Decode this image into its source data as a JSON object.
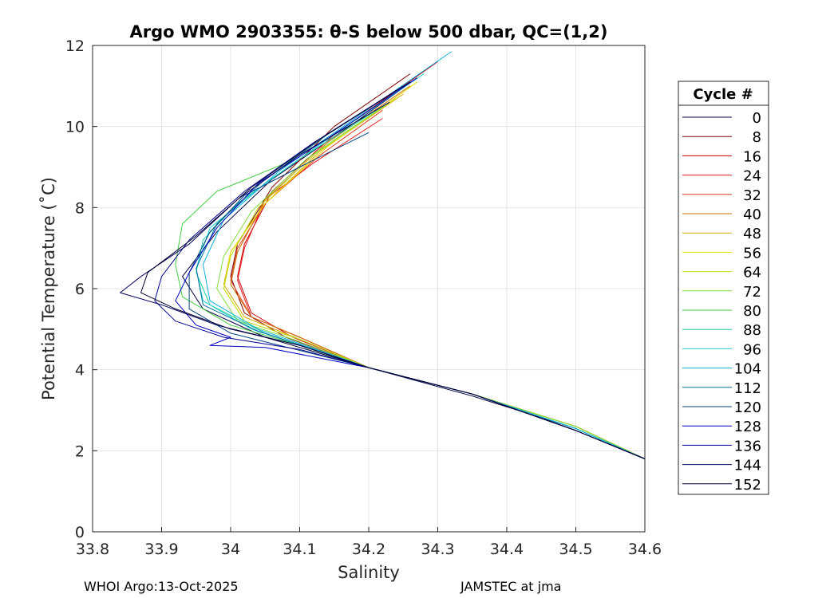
{
  "chart_data": {
    "type": "line",
    "title": "Argo WMO 2903355: θ-S below 500 dbar,  QC=(1,2)",
    "xlabel": "Salinity",
    "ylabel": "Potential Temperature (˚C)",
    "xlim": [
      33.8,
      34.6
    ],
    "ylim": [
      0,
      12
    ],
    "xticks": [
      "33.8",
      "33.9",
      "34",
      "34.1",
      "34.2",
      "34.3",
      "34.4",
      "34.5",
      "34.6"
    ],
    "yticks": [
      "0",
      "2",
      "4",
      "6",
      "8",
      "10",
      "12"
    ],
    "grid": true,
    "legend": {
      "title": "Cycle #",
      "position": "right outside",
      "entries": [
        {
          "label": "0",
          "color": "#000040"
        },
        {
          "label": "8",
          "color": "#800000"
        },
        {
          "label": "16",
          "color": "#cc0000"
        },
        {
          "label": "24",
          "color": "#e81a1a"
        },
        {
          "label": "32",
          "color": "#e04020"
        },
        {
          "label": "40",
          "color": "#cc7000"
        },
        {
          "label": "48",
          "color": "#d4a800"
        },
        {
          "label": "56",
          "color": "#e8e000"
        },
        {
          "label": "64",
          "color": "#c0e020"
        },
        {
          "label": "72",
          "color": "#80e040"
        },
        {
          "label": "80",
          "color": "#40d040"
        },
        {
          "label": "88",
          "color": "#20d0a0"
        },
        {
          "label": "96",
          "color": "#20d0d0"
        },
        {
          "label": "104",
          "color": "#10b0e0"
        },
        {
          "label": "112",
          "color": "#0070a0"
        },
        {
          "label": "120",
          "color": "#004080"
        },
        {
          "label": "128",
          "color": "#0000c0"
        },
        {
          "label": "136",
          "color": "#000090"
        },
        {
          "label": "144",
          "color": "#000060"
        },
        {
          "label": "152",
          "color": "#000030"
        }
      ]
    },
    "series": [
      {
        "name": "0",
        "color": "#000040",
        "points": [
          [
            34.27,
            11.2
          ],
          [
            34.18,
            10.1
          ],
          [
            34.06,
            8.7
          ],
          [
            33.98,
            7.4
          ],
          [
            33.93,
            6.3
          ],
          [
            33.96,
            5.5
          ],
          [
            34.05,
            4.8
          ],
          [
            34.2,
            4.05
          ],
          [
            34.35,
            3.35
          ],
          [
            34.5,
            2.55
          ],
          [
            34.6,
            1.8
          ]
        ]
      },
      {
        "name": "8",
        "color": "#800000",
        "points": [
          [
            34.26,
            11.3
          ],
          [
            34.15,
            10.0
          ],
          [
            34.06,
            8.5
          ],
          [
            34.01,
            7.1
          ],
          [
            34.0,
            6.3
          ],
          [
            34.02,
            5.4
          ],
          [
            34.08,
            4.8
          ],
          [
            34.2,
            4.05
          ],
          [
            34.35,
            3.4
          ],
          [
            34.5,
            2.6
          ],
          [
            34.6,
            1.8
          ]
        ]
      },
      {
        "name": "16",
        "color": "#cc0000",
        "points": [
          [
            34.3,
            11.6
          ],
          [
            34.15,
            9.8
          ],
          [
            34.06,
            8.4
          ],
          [
            34.02,
            7.1
          ],
          [
            34.01,
            6.3
          ],
          [
            34.03,
            5.4
          ],
          [
            34.09,
            4.8
          ],
          [
            34.2,
            4.05
          ],
          [
            34.35,
            3.4
          ],
          [
            34.5,
            2.6
          ],
          [
            34.6,
            1.8
          ]
        ]
      },
      {
        "name": "24",
        "color": "#e81a1a",
        "points": [
          [
            34.22,
            10.2
          ],
          [
            34.12,
            9.1
          ],
          [
            34.05,
            8.2
          ],
          [
            34.02,
            7.0
          ],
          [
            34.01,
            6.2
          ],
          [
            34.03,
            5.3
          ],
          [
            34.1,
            4.8
          ],
          [
            34.2,
            4.05
          ],
          [
            34.35,
            3.4
          ],
          [
            34.5,
            2.6
          ],
          [
            34.6,
            1.8
          ]
        ]
      },
      {
        "name": "32",
        "color": "#e04020",
        "points": [
          [
            34.22,
            10.4
          ],
          [
            34.13,
            9.3
          ],
          [
            34.05,
            8.1
          ],
          [
            34.01,
            7.0
          ],
          [
            34.0,
            6.2
          ],
          [
            34.03,
            5.3
          ],
          [
            34.1,
            4.8
          ],
          [
            34.2,
            4.05
          ],
          [
            34.35,
            3.4
          ],
          [
            34.5,
            2.6
          ],
          [
            34.6,
            1.8
          ]
        ]
      },
      {
        "name": "40",
        "color": "#cc7000",
        "points": [
          [
            34.26,
            11.0
          ],
          [
            34.14,
            9.6
          ],
          [
            34.05,
            8.2
          ],
          [
            34.01,
            6.9
          ],
          [
            34.0,
            6.1
          ],
          [
            34.03,
            5.3
          ],
          [
            34.1,
            4.8
          ],
          [
            34.2,
            4.05
          ],
          [
            34.35,
            3.4
          ],
          [
            34.5,
            2.6
          ],
          [
            34.6,
            1.8
          ]
        ]
      },
      {
        "name": "48",
        "color": "#d4a800",
        "points": [
          [
            34.25,
            10.8
          ],
          [
            34.13,
            9.4
          ],
          [
            34.05,
            8.1
          ],
          [
            34.0,
            6.9
          ],
          [
            33.99,
            6.1
          ],
          [
            34.02,
            5.3
          ],
          [
            34.1,
            4.75
          ],
          [
            34.2,
            4.05
          ],
          [
            34.35,
            3.4
          ],
          [
            34.5,
            2.6
          ],
          [
            34.6,
            1.8
          ]
        ]
      },
      {
        "name": "56",
        "color": "#e8e000",
        "points": [
          [
            34.27,
            11.1
          ],
          [
            34.14,
            9.5
          ],
          [
            34.05,
            8.1
          ],
          [
            34.0,
            6.9
          ],
          [
            33.99,
            6.0
          ],
          [
            34.02,
            5.2
          ],
          [
            34.1,
            4.75
          ],
          [
            34.2,
            4.05
          ],
          [
            34.35,
            3.4
          ],
          [
            34.5,
            2.6
          ],
          [
            34.6,
            1.8
          ]
        ]
      },
      {
        "name": "64",
        "color": "#c0e020",
        "points": [
          [
            34.24,
            10.7
          ],
          [
            34.12,
            9.3
          ],
          [
            34.04,
            8.0
          ],
          [
            34.0,
            6.8
          ],
          [
            33.99,
            6.0
          ],
          [
            34.02,
            5.2
          ],
          [
            34.1,
            4.75
          ],
          [
            34.2,
            4.05
          ],
          [
            34.35,
            3.4
          ],
          [
            34.5,
            2.6
          ],
          [
            34.6,
            1.8
          ]
        ]
      },
      {
        "name": "72",
        "color": "#80e040",
        "points": [
          [
            34.23,
            10.6
          ],
          [
            34.11,
            9.2
          ],
          [
            34.03,
            7.9
          ],
          [
            33.99,
            6.8
          ],
          [
            33.98,
            6.0
          ],
          [
            34.01,
            5.2
          ],
          [
            34.09,
            4.75
          ],
          [
            34.2,
            4.05
          ],
          [
            34.35,
            3.4
          ],
          [
            34.5,
            2.6
          ],
          [
            34.6,
            1.8
          ]
        ]
      },
      {
        "name": "80",
        "color": "#40d040",
        "points": [
          [
            34.2,
            10.3
          ],
          [
            34.08,
            9.1
          ],
          [
            33.98,
            8.4
          ],
          [
            33.93,
            7.6
          ],
          [
            33.92,
            6.6
          ],
          [
            33.93,
            5.8
          ],
          [
            34.0,
            5.1
          ],
          [
            34.1,
            4.6
          ],
          [
            34.2,
            4.05
          ],
          [
            34.35,
            3.4
          ],
          [
            34.5,
            2.55
          ],
          [
            34.6,
            1.8
          ]
        ]
      },
      {
        "name": "88",
        "color": "#20d0a0",
        "points": [
          [
            34.22,
            10.5
          ],
          [
            34.1,
            9.2
          ],
          [
            34.01,
            8.1
          ],
          [
            33.96,
            7.2
          ],
          [
            33.95,
            6.4
          ],
          [
            33.97,
            5.6
          ],
          [
            34.05,
            4.9
          ],
          [
            34.2,
            4.05
          ],
          [
            34.35,
            3.4
          ],
          [
            34.5,
            2.55
          ],
          [
            34.6,
            1.8
          ]
        ]
      },
      {
        "name": "96",
        "color": "#20d0d0",
        "points": [
          [
            34.28,
            11.3
          ],
          [
            34.15,
            9.8
          ],
          [
            34.05,
            8.6
          ],
          [
            33.97,
            7.5
          ],
          [
            33.95,
            6.5
          ],
          [
            33.96,
            5.7
          ],
          [
            34.03,
            5.0
          ],
          [
            34.2,
            4.05
          ],
          [
            34.35,
            3.4
          ],
          [
            34.5,
            2.55
          ],
          [
            34.6,
            1.8
          ]
        ]
      },
      {
        "name": "104",
        "color": "#10b0e0",
        "points": [
          [
            34.32,
            11.85
          ],
          [
            34.18,
            10.2
          ],
          [
            34.07,
            8.9
          ],
          [
            33.99,
            7.7
          ],
          [
            33.96,
            6.6
          ],
          [
            33.97,
            5.7
          ],
          [
            34.04,
            5.0
          ],
          [
            34.2,
            4.05
          ],
          [
            34.35,
            3.4
          ],
          [
            34.5,
            2.55
          ],
          [
            34.6,
            1.8
          ]
        ]
      },
      {
        "name": "112",
        "color": "#0070a0",
        "points": [
          [
            34.26,
            11.1
          ],
          [
            34.14,
            9.8
          ],
          [
            34.05,
            8.7
          ],
          [
            33.98,
            7.6
          ],
          [
            33.95,
            6.5
          ],
          [
            33.96,
            5.6
          ],
          [
            34.04,
            4.95
          ],
          [
            34.2,
            4.05
          ],
          [
            34.35,
            3.4
          ],
          [
            34.5,
            2.5
          ],
          [
            34.6,
            1.8
          ]
        ]
      },
      {
        "name": "120",
        "color": "#004080",
        "points": [
          [
            34.2,
            9.85
          ],
          [
            34.1,
            9.0
          ],
          [
            34.02,
            8.3
          ],
          [
            33.97,
            7.4
          ],
          [
            33.94,
            6.4
          ],
          [
            33.94,
            5.5
          ],
          [
            34.0,
            4.9
          ],
          [
            34.2,
            4.05
          ],
          [
            34.35,
            3.4
          ],
          [
            34.5,
            2.5
          ],
          [
            34.6,
            1.8
          ]
        ]
      },
      {
        "name": "128",
        "color": "#0000c0",
        "points": [
          [
            34.27,
            11.2
          ],
          [
            34.14,
            9.7
          ],
          [
            34.04,
            8.6
          ],
          [
            33.98,
            7.5
          ],
          [
            33.94,
            6.4
          ],
          [
            33.92,
            5.7
          ],
          [
            33.95,
            5.1
          ],
          [
            34.0,
            4.8
          ],
          [
            33.97,
            4.6
          ],
          [
            34.05,
            4.55
          ],
          [
            34.2,
            4.05
          ],
          [
            34.35,
            3.4
          ],
          [
            34.5,
            2.5
          ],
          [
            34.6,
            1.8
          ]
        ]
      },
      {
        "name": "136",
        "color": "#000090",
        "points": [
          [
            34.25,
            11.0
          ],
          [
            34.12,
            9.6
          ],
          [
            34.02,
            8.4
          ],
          [
            33.94,
            7.2
          ],
          [
            33.9,
            6.3
          ],
          [
            33.89,
            5.7
          ],
          [
            33.92,
            5.2
          ],
          [
            33.99,
            4.8
          ],
          [
            34.1,
            4.5
          ],
          [
            34.2,
            4.05
          ],
          [
            34.35,
            3.4
          ],
          [
            34.5,
            2.5
          ],
          [
            34.6,
            1.8
          ]
        ]
      },
      {
        "name": "144",
        "color": "#000060",
        "points": [
          [
            34.23,
            10.6
          ],
          [
            34.1,
            9.3
          ],
          [
            34.01,
            8.2
          ],
          [
            33.94,
            7.1
          ],
          [
            33.87,
            6.3
          ],
          [
            33.84,
            5.9
          ],
          [
            33.9,
            5.6
          ],
          [
            33.98,
            5.1
          ],
          [
            34.1,
            4.6
          ],
          [
            34.2,
            4.05
          ],
          [
            34.35,
            3.4
          ],
          [
            34.5,
            2.5
          ],
          [
            34.6,
            1.8
          ]
        ]
      },
      {
        "name": "152",
        "color": "#000030",
        "points": [
          [
            34.26,
            11.1
          ],
          [
            34.13,
            9.7
          ],
          [
            34.03,
            8.5
          ],
          [
            33.95,
            7.3
          ],
          [
            33.88,
            6.4
          ],
          [
            33.87,
            5.9
          ],
          [
            33.92,
            5.5
          ],
          [
            34.0,
            5.0
          ],
          [
            34.1,
            4.6
          ],
          [
            34.2,
            4.05
          ],
          [
            34.35,
            3.4
          ],
          [
            34.5,
            2.5
          ],
          [
            34.6,
            1.8
          ]
        ]
      }
    ]
  },
  "footer": {
    "left": "WHOI Argo:13-Oct-2025",
    "right": "JAMSTEC at jma"
  }
}
